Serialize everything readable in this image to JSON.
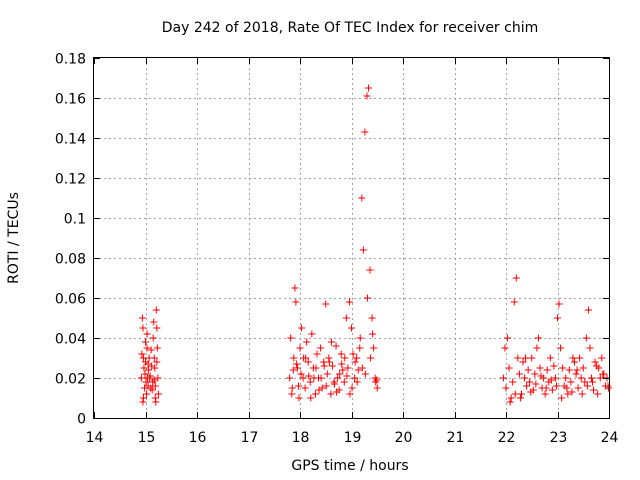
{
  "chart_data": {
    "type": "scatter",
    "title": "Day 242 of 2018, Rate Of TEC Index for receiver chim",
    "xlabel": "GPS time / hours",
    "ylabel": "ROTI / TECUs",
    "xlim": [
      14,
      24
    ],
    "ylim": [
      0,
      0.18
    ],
    "xticks": [
      "14",
      "15",
      "16",
      "17",
      "18",
      "19",
      "20",
      "21",
      "22",
      "23",
      "24"
    ],
    "yticks": [
      "0",
      "0.02",
      "0.04",
      "0.06",
      "0.08",
      "0.1",
      "0.12",
      "0.14",
      "0.16",
      "0.18"
    ],
    "grid": true,
    "marker": "plus",
    "color": "#ff0000",
    "series": [
      {
        "x": [
          14.92,
          14.94,
          14.95,
          14.96,
          14.97,
          14.98,
          14.99,
          15.0,
          15.01,
          15.02,
          15.03,
          15.04,
          15.05,
          15.06,
          15.07,
          15.08,
          15.1,
          15.12,
          15.14,
          15.15,
          15.16,
          15.17,
          15.18,
          15.19,
          15.2,
          15.21,
          15.22,
          15.23,
          15.24,
          15.25,
          14.93,
          14.96,
          15.0,
          15.05,
          15.09,
          15.13,
          15.17,
          15.22,
          14.95,
          15.03,
          15.11,
          15.19
        ],
        "y": [
          0.02,
          0.05,
          0.045,
          0.03,
          0.025,
          0.015,
          0.022,
          0.028,
          0.018,
          0.012,
          0.035,
          0.02,
          0.016,
          0.024,
          0.03,
          0.02,
          0.015,
          0.026,
          0.018,
          0.04,
          0.048,
          0.03,
          0.025,
          0.01,
          0.008,
          0.054,
          0.045,
          0.035,
          0.02,
          0.012,
          0.032,
          0.01,
          0.038,
          0.027,
          0.021,
          0.014,
          0.019,
          0.028,
          0.008,
          0.042,
          0.034,
          0.016
        ]
      },
      {
        "x": [
          17.8,
          17.82,
          17.85,
          17.88,
          17.9,
          17.92,
          17.95,
          17.98,
          18.0,
          18.03,
          18.06,
          18.1,
          18.13,
          18.16,
          18.2,
          18.23,
          18.26,
          18.3,
          18.33,
          18.36,
          18.4,
          18.43,
          18.46,
          18.5,
          18.53,
          18.56,
          18.6,
          18.63,
          18.66,
          18.7,
          18.73,
          18.76,
          18.8,
          18.83,
          18.86,
          18.9,
          18.93,
          18.96,
          19.0,
          19.03,
          19.06,
          19.1,
          19.13,
          19.16,
          19.2,
          19.23,
          19.26,
          19.3,
          19.33,
          19.36,
          19.4,
          19.43,
          19.46,
          19.5,
          17.84,
          17.93,
          18.02,
          18.11,
          18.21,
          18.31,
          18.41,
          18.51,
          18.61,
          18.71,
          18.81,
          18.91,
          19.01,
          19.11,
          19.21,
          19.31,
          19.41,
          19.49,
          17.87,
          17.97,
          18.07,
          18.17,
          18.27,
          18.37,
          18.47,
          18.57,
          18.67,
          18.77,
          18.87,
          18.97,
          19.07,
          19.17,
          19.27,
          19.37,
          19.47
        ],
        "y": [
          0.02,
          0.04,
          0.015,
          0.03,
          0.065,
          0.058,
          0.025,
          0.01,
          0.035,
          0.045,
          0.02,
          0.015,
          0.038,
          0.028,
          0.018,
          0.042,
          0.025,
          0.012,
          0.032,
          0.02,
          0.035,
          0.015,
          0.028,
          0.057,
          0.022,
          0.03,
          0.012,
          0.026,
          0.018,
          0.036,
          0.02,
          0.014,
          0.032,
          0.024,
          0.018,
          0.05,
          0.025,
          0.058,
          0.045,
          0.032,
          0.02,
          0.03,
          0.024,
          0.035,
          0.11,
          0.084,
          0.143,
          0.161,
          0.165,
          0.074,
          0.05,
          0.035,
          0.02,
          0.015,
          0.012,
          0.027,
          0.022,
          0.03,
          0.01,
          0.025,
          0.02,
          0.016,
          0.038,
          0.013,
          0.027,
          0.021,
          0.015,
          0.018,
          0.025,
          0.06,
          0.042,
          0.019,
          0.024,
          0.016,
          0.03,
          0.021,
          0.02,
          0.014,
          0.026,
          0.028,
          0.017,
          0.022,
          0.03,
          0.012,
          0.028,
          0.04,
          0.022,
          0.03,
          0.018
        ]
      },
      {
        "x": [
          21.95,
          21.98,
          22.0,
          22.03,
          22.06,
          22.1,
          22.13,
          22.16,
          22.2,
          22.23,
          22.26,
          22.3,
          22.33,
          22.36,
          22.4,
          22.43,
          22.46,
          22.5,
          22.53,
          22.56,
          22.6,
          22.63,
          22.66,
          22.7,
          22.73,
          22.76,
          22.8,
          22.83,
          22.86,
          22.9,
          22.93,
          22.96,
          23.0,
          23.03,
          23.06,
          23.1,
          23.13,
          23.16,
          23.2,
          23.23,
          23.26,
          23.3,
          23.33,
          23.36,
          23.4,
          23.43,
          23.46,
          23.5,
          23.53,
          23.56,
          23.6,
          23.63,
          23.66,
          23.7,
          23.73,
          23.76,
          23.8,
          23.83,
          23.86,
          23.9,
          23.93,
          23.96,
          23.99,
          22.08,
          22.18,
          22.28,
          22.38,
          22.48,
          22.58,
          22.68,
          22.78,
          22.88,
          22.98,
          23.08,
          23.18,
          23.28,
          23.38,
          23.48,
          23.58,
          23.68,
          23.78,
          23.88,
          23.98
        ],
        "y": [
          0.02,
          0.035,
          0.015,
          0.04,
          0.025,
          0.01,
          0.018,
          0.058,
          0.07,
          0.03,
          0.022,
          0.012,
          0.028,
          0.02,
          0.016,
          0.024,
          0.018,
          0.03,
          0.014,
          0.022,
          0.035,
          0.04,
          0.025,
          0.015,
          0.02,
          0.012,
          0.024,
          0.018,
          0.03,
          0.014,
          0.026,
          0.02,
          0.05,
          0.057,
          0.035,
          0.025,
          0.016,
          0.02,
          0.012,
          0.024,
          0.018,
          0.03,
          0.028,
          0.022,
          0.015,
          0.03,
          0.02,
          0.025,
          0.018,
          0.04,
          0.054,
          0.035,
          0.02,
          0.014,
          0.028,
          0.026,
          0.025,
          0.02,
          0.03,
          0.022,
          0.016,
          0.02,
          0.015,
          0.008,
          0.012,
          0.01,
          0.03,
          0.013,
          0.017,
          0.021,
          0.015,
          0.019,
          0.016,
          0.01,
          0.015,
          0.013,
          0.024,
          0.012,
          0.016,
          0.018,
          0.012,
          0.022,
          0.016
        ]
      }
    ]
  }
}
